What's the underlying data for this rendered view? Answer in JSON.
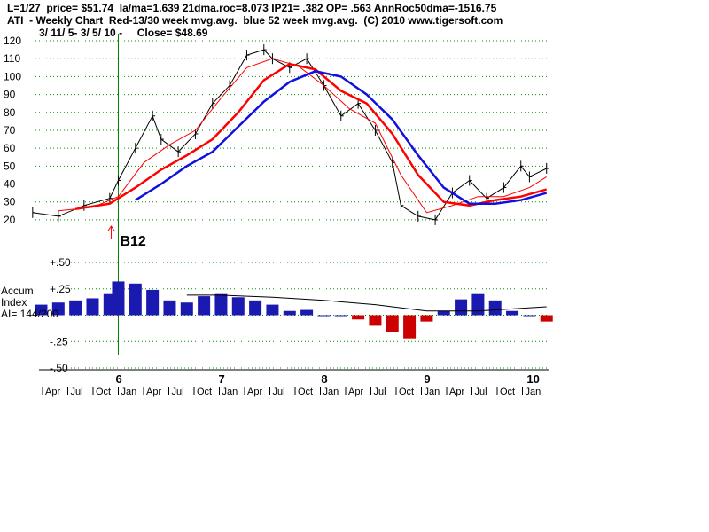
{
  "header": {
    "line1": "L=1/27  price= $51.74  la/ma=1.639 21dma.roc=8.073 IP21= .382 OP= .563 AnnRoc50dma=-1516.75",
    "line2": "ATI  - Weekly Chart  Red-13/30 week mvg.avg.  blue 52 week mvg.avg.  (C) 2010 www.tigersoft.com",
    "line3": "3/ 11/ 5- 3/ 5/ 10 -     Close= $48.69"
  },
  "chart_data": [
    {
      "type": "line",
      "title": "ATI  - Weekly Chart",
      "x_range": [
        "2005-03-11",
        "2010-03-05"
      ],
      "ylim": [
        15,
        120
      ],
      "yticks": [
        20,
        30,
        40,
        50,
        60,
        70,
        80,
        90,
        100,
        110,
        120
      ],
      "grid": true,
      "year_labels": [
        {
          "label": "6",
          "x": "2006-01"
        },
        {
          "label": "7",
          "x": "2007-01"
        },
        {
          "label": "8",
          "x": "2008-01"
        },
        {
          "label": "9",
          "x": "2009-01"
        },
        {
          "label": "10",
          "x": "2010-01"
        }
      ],
      "month_labels": [
        "Apr",
        "Jul",
        "Oct",
        "Jan",
        "Apr",
        "Jul",
        "Oct",
        "Jan",
        "Apr",
        "Jul",
        "Oct",
        "Jan",
        "Apr",
        "Jul",
        "Oct",
        "Jan",
        "Apr",
        "Jul",
        "Oct",
        "Jan"
      ],
      "series": [
        {
          "name": "price",
          "color": "#000000",
          "x": [
            "2005-03",
            "2005-06",
            "2005-09",
            "2005-12",
            "2006-01",
            "2006-03",
            "2006-05",
            "2006-06",
            "2006-08",
            "2006-10",
            "2006-12",
            "2007-02",
            "2007-04",
            "2007-06",
            "2007-07",
            "2007-09",
            "2007-11",
            "2008-01",
            "2008-03",
            "2008-05",
            "2008-07",
            "2008-09",
            "2008-10",
            "2008-12",
            "2009-02",
            "2009-04",
            "2009-06",
            "2009-08",
            "2009-10",
            "2009-12",
            "2010-01",
            "2010-03"
          ],
          "values": [
            24,
            22,
            28,
            32,
            42,
            60,
            78,
            65,
            58,
            68,
            85,
            95,
            112,
            115,
            110,
            105,
            110,
            95,
            78,
            85,
            70,
            52,
            28,
            22,
            20,
            35,
            42,
            32,
            38,
            50,
            44,
            48.69
          ]
        },
        {
          "name": "13 week mvg.avg.",
          "color": "#ff0000",
          "x": [
            "2005-06",
            "2005-10",
            "2006-01",
            "2006-04",
            "2006-07",
            "2006-10",
            "2007-01",
            "2007-04",
            "2007-07",
            "2007-10",
            "2008-01",
            "2008-04",
            "2008-07",
            "2008-10",
            "2009-01",
            "2009-04",
            "2009-07",
            "2009-10",
            "2010-01",
            "2010-03"
          ],
          "values": [
            25,
            27,
            33,
            52,
            62,
            70,
            88,
            105,
            110,
            106,
            95,
            82,
            74,
            45,
            24,
            28,
            33,
            33,
            38,
            44
          ]
        },
        {
          "name": "30 week mvg.avg.",
          "color": "#ff0000",
          "x": [
            "2005-08",
            "2005-12",
            "2006-03",
            "2006-06",
            "2006-09",
            "2006-12",
            "2007-03",
            "2007-06",
            "2007-09",
            "2007-12",
            "2008-03",
            "2008-06",
            "2008-09",
            "2008-12",
            "2009-03",
            "2009-06",
            "2009-09",
            "2009-12",
            "2010-03"
          ],
          "values": [
            26,
            29,
            38,
            48,
            56,
            65,
            80,
            98,
            107,
            104,
            92,
            85,
            68,
            45,
            30,
            28,
            31,
            33,
            37
          ]
        },
        {
          "name": "52 week mvg.avg.",
          "color": "#1010e0",
          "x": [
            "2006-03",
            "2006-06",
            "2006-09",
            "2006-12",
            "2007-03",
            "2007-06",
            "2007-09",
            "2007-12",
            "2008-03",
            "2008-06",
            "2008-09",
            "2008-12",
            "2009-03",
            "2009-06",
            "2009-09",
            "2009-12",
            "2010-03"
          ],
          "values": [
            31,
            40,
            50,
            58,
            72,
            86,
            97,
            103,
            100,
            90,
            76,
            56,
            38,
            29,
            29,
            31,
            35
          ]
        }
      ],
      "annotations": [
        {
          "label": "B12",
          "x": "2006-01",
          "color": "#000000",
          "marker_color": "#ff0000",
          "line_color": "#008000"
        }
      ]
    },
    {
      "type": "bar",
      "title": "Accum Index",
      "label_lines": [
        "Accum",
        "Index",
        "AI= 144/200"
      ],
      "ylim": [
        -0.5,
        0.5
      ],
      "yticks": [
        0.5,
        0.25,
        0,
        -0.25,
        -0.5
      ],
      "ytick_labels": [
        "+.50",
        "+.25",
        "",
        "-.25",
        "-.50"
      ],
      "positive_color": "#1a1ab0",
      "negative_color": "#cc0000",
      "x": [
        "2005-04",
        "2005-06",
        "2005-08",
        "2005-10",
        "2005-12",
        "2006-01",
        "2006-03",
        "2006-05",
        "2006-07",
        "2006-09",
        "2006-11",
        "2007-01",
        "2007-03",
        "2007-05",
        "2007-07",
        "2007-09",
        "2007-11",
        "2008-01",
        "2008-03",
        "2008-05",
        "2008-07",
        "2008-09",
        "2008-11",
        "2009-01",
        "2009-03",
        "2009-05",
        "2009-07",
        "2009-09",
        "2009-11",
        "2010-01",
        "2010-03"
      ],
      "values": [
        0.1,
        0.12,
        0.14,
        0.16,
        0.2,
        0.32,
        0.3,
        0.24,
        0.14,
        0.12,
        0.18,
        0.2,
        0.17,
        0.14,
        0.1,
        0.04,
        0.05,
        0.0,
        0.0,
        -0.04,
        -0.1,
        -0.16,
        -0.22,
        -0.06,
        0.04,
        0.15,
        0.2,
        0.14,
        0.04,
        0.0,
        -0.06
      ],
      "ma_series": {
        "x": [
          "2006-09",
          "2007-01",
          "2007-07",
          "2008-01",
          "2008-07",
          "2009-01",
          "2009-07",
          "2010-03"
        ],
        "values": [
          0.19,
          0.19,
          0.17,
          0.14,
          0.1,
          0.04,
          0.04,
          0.08
        ]
      }
    }
  ]
}
